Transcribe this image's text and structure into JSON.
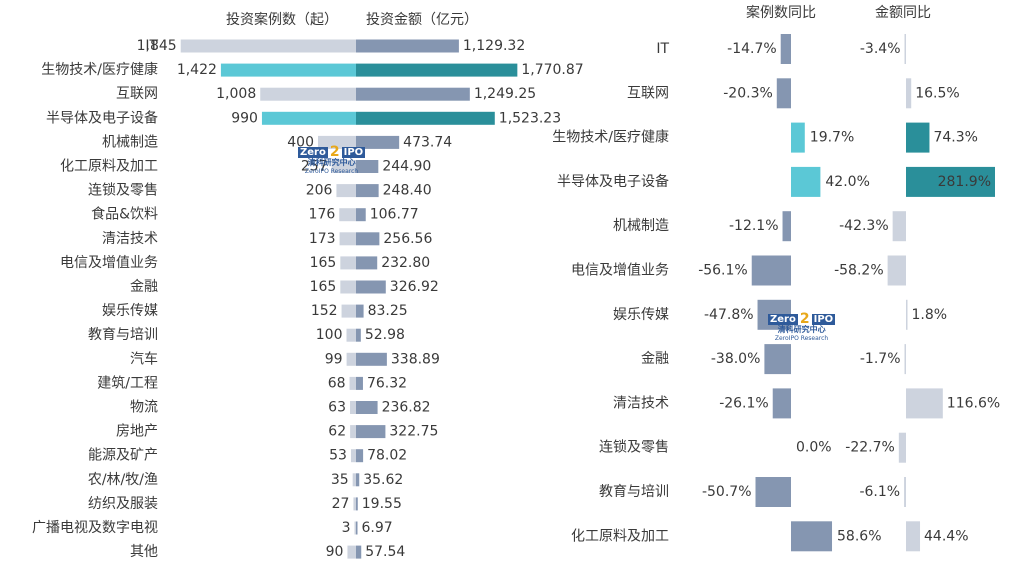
{
  "chart_data": [
    {
      "type": "bar",
      "orientation": "horizontal-diverging",
      "series": [
        {
          "name": "投资案例数（起）",
          "color": "#cdd3de",
          "highlight_color": "#5bc8d6"
        },
        {
          "name": "投资金额（亿元）",
          "color": "#8596b1",
          "highlight_color": "#2a8f9a"
        }
      ],
      "highlight_categories": [
        "生物技术/医疗健康",
        "半导体及电子设备"
      ],
      "categories": [
        "IT",
        "生物技术/医疗健康",
        "互联网",
        "半导体及电子设备",
        "机械制造",
        "化工原料及加工",
        "连锁及零售",
        "食品&饮料",
        "清洁技术",
        "电信及增值业务",
        "金融",
        "娱乐传媒",
        "教育与培训",
        "汽车",
        "建筑/工程",
        "物流",
        "房地产",
        "能源及矿产",
        "农/林/牧/渔",
        "纺织及服装",
        "广播电视及数字电视",
        "其他"
      ],
      "cases": [
        1845,
        1422,
        1008,
        990,
        400,
        257,
        206,
        176,
        173,
        165,
        165,
        152,
        100,
        99,
        68,
        63,
        62,
        53,
        35,
        27,
        3,
        90
      ],
      "case_labels": [
        "1,845",
        "1,422",
        "1,008",
        "990",
        "400",
        "257",
        "206",
        "176",
        "173",
        "165",
        "165",
        "152",
        "100",
        "99",
        "68",
        "63",
        "62",
        "53",
        "35",
        "27",
        "3",
        "90"
      ],
      "amounts": [
        1129.32,
        1770.87,
        1249.25,
        1523.23,
        473.74,
        244.9,
        248.4,
        106.77,
        256.56,
        232.8,
        326.92,
        83.25,
        52.98,
        338.89,
        76.32,
        236.82,
        322.75,
        78.02,
        35.62,
        19.55,
        6.97,
        57.54
      ],
      "amount_labels": [
        "1,129.32",
        "1,770.87",
        "1,249.25",
        "1,523.23",
        "473.74",
        "244.90",
        "248.40",
        "106.77",
        "256.56",
        "232.80",
        "326.92",
        "83.25",
        "52.98",
        "338.89",
        "76.32",
        "236.82",
        "322.75",
        "78.02",
        "35.62",
        "19.55",
        "6.97",
        "57.54"
      ]
    },
    {
      "type": "bar",
      "orientation": "horizontal",
      "series": [
        {
          "name": "案例数同比",
          "color": "#8596b1",
          "highlight_color": "#5bc8d6"
        },
        {
          "name": "金额同比",
          "color": "#cdd3de",
          "highlight_color": "#2a8f9a"
        }
      ],
      "highlight_categories": [
        "生物技术/医疗健康",
        "半导体及电子设备"
      ],
      "categories": [
        "IT",
        "互联网",
        "生物技术/医疗健康",
        "半导体及电子设备",
        "机械制造",
        "电信及增值业务",
        "娱乐传媒",
        "金融",
        "清洁技术",
        "连锁及零售",
        "教育与培训",
        "化工原料及加工"
      ],
      "case_yoy": [
        -14.7,
        -20.3,
        19.7,
        42.0,
        -12.1,
        -56.1,
        -47.8,
        -38.0,
        -26.1,
        0.0,
        -50.7,
        58.6
      ],
      "case_yoy_labels": [
        "-14.7%",
        "-20.3%",
        "19.7%",
        "42.0%",
        "-12.1%",
        "-56.1%",
        "-47.8%",
        "-38.0%",
        "-26.1%",
        "0.0%",
        "-50.7%",
        "58.6%"
      ],
      "amount_yoy": [
        -3.4,
        16.5,
        74.3,
        281.9,
        -42.3,
        -58.2,
        1.8,
        -1.7,
        116.6,
        -22.7,
        -6.1,
        44.4
      ],
      "amount_yoy_labels": [
        "-3.4%",
        "16.5%",
        "74.3%",
        "281.9%",
        "-42.3%",
        "-58.2%",
        "1.8%",
        "-1.7%",
        "116.6%",
        "-22.7%",
        "-6.1%",
        "44.4%"
      ]
    }
  ],
  "watermark": {
    "word": "Zero",
    "two": "2",
    "ipo": "IPO",
    "cn": "清科研究中心",
    "en": "ZeroIPO Research"
  }
}
